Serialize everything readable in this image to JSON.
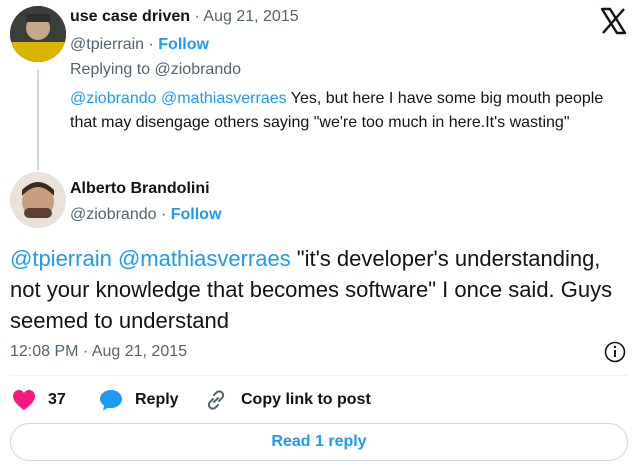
{
  "reply_tweet": {
    "author_name": "use case driven",
    "separator": " · ",
    "date": "Aug 21, 2015",
    "handle": "@tpierrain",
    "follow_label": "Follow",
    "replying_to_label": "Replying to ",
    "replying_to_handle": "@ziobrando",
    "mention_1": "@ziobrando",
    "mention_2": "@mathiasverraes",
    "text": " Yes, but here I have some big mouth people that may disengage others saying \"we're too much in here.It's wasting\""
  },
  "main_tweet": {
    "author_name": "Alberto Brandolini",
    "handle": "@ziobrando",
    "follow_label": "Follow",
    "mention_1": "@tpierrain",
    "mention_2": "@mathiasverraes",
    "text": " \"it's developer's understanding, not your knowledge that becomes software\" I once said. Guys seemed to understand",
    "timestamp": "12:08 PM · Aug 21, 2015"
  },
  "actions": {
    "like_count": "37",
    "reply_label": "Reply",
    "copy_link_label": "Copy link to post"
  },
  "footer": {
    "read_replies_label": "Read 1 reply"
  },
  "colors": {
    "accent": "#1d9bf0",
    "like": "#f91880",
    "muted": "#536471",
    "border": "#cfd9de"
  }
}
